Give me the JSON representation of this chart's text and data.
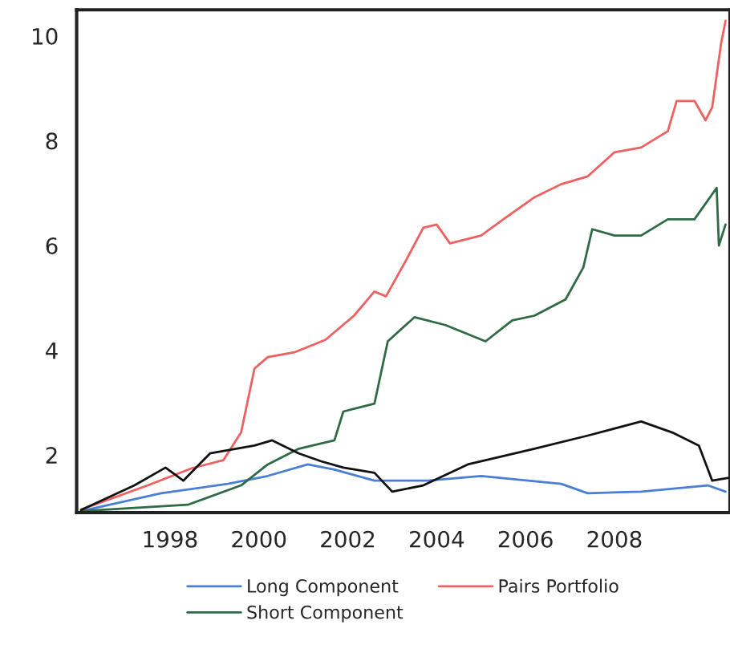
{
  "chart_data": {
    "type": "line",
    "xlim": [
      1995.9,
      2010.6
    ],
    "ylim": [
      0.9,
      10.5
    ],
    "xticks": [
      1998,
      2000,
      2002,
      2004,
      2006,
      2008
    ],
    "yticks": [
      2,
      4,
      6,
      8,
      10
    ],
    "grid": false,
    "legend": "bottom",
    "series": [
      {
        "name": "Long Component",
        "color": "#4a7fd6",
        "x": [
          1996.0,
          1997.8,
          1999.3,
          2000.2,
          2001.1,
          2001.7,
          2002.6,
          2003.8,
          2005.0,
          2006.8,
          2007.4,
          2008.6,
          2010.1,
          2010.5
        ],
        "values": [
          0.93,
          1.27,
          1.45,
          1.6,
          1.82,
          1.72,
          1.51,
          1.51,
          1.6,
          1.45,
          1.27,
          1.3,
          1.42,
          1.3
        ]
      },
      {
        "name": "Short Component",
        "color": "#2e6b45",
        "x": [
          1996.0,
          1998.4,
          1999.6,
          2000.2,
          2000.9,
          2001.7,
          2001.9,
          2002.6,
          2002.9,
          2003.5,
          2004.2,
          2005.1,
          2005.7,
          2006.2,
          2006.9,
          2007.3,
          2007.5,
          2008.0,
          2008.6,
          2009.2,
          2009.8,
          2010.3,
          2010.35,
          2010.5
        ],
        "values": [
          0.93,
          1.05,
          1.42,
          1.82,
          2.12,
          2.28,
          2.83,
          2.98,
          4.17,
          4.63,
          4.48,
          4.17,
          4.57,
          4.66,
          4.97,
          5.58,
          6.31,
          6.19,
          6.19,
          6.5,
          6.5,
          7.1,
          6.0,
          6.4
        ]
      },
      {
        "name": "Pairs Portfolio",
        "color": "#f06060",
        "x": [
          1996.0,
          1997.5,
          1998.5,
          1999.2,
          1999.6,
          1999.9,
          2000.2,
          2000.8,
          2001.5,
          2002.14,
          2002.6,
          2002.86,
          2003.3,
          2003.7,
          2004.0,
          2004.3,
          2005.0,
          2005.5,
          2006.2,
          2006.8,
          2007.4,
          2008.0,
          2008.6,
          2009.2,
          2009.4,
          2009.8,
          2010.05,
          2010.2,
          2010.4,
          2010.5
        ],
        "values": [
          0.96,
          1.42,
          1.75,
          1.9,
          2.43,
          3.65,
          3.87,
          3.96,
          4.2,
          4.66,
          5.12,
          5.03,
          5.7,
          6.34,
          6.4,
          6.04,
          6.19,
          6.5,
          6.92,
          7.17,
          7.32,
          7.78,
          7.87,
          8.18,
          8.76,
          8.76,
          8.39,
          8.64,
          9.86,
          10.29
        ]
      },
      {
        "color": "#111111",
        "x": [
          1996.0,
          1997.2,
          1997.9,
          1998.3,
          1998.9,
          1999.9,
          2000.3,
          2000.9,
          2001.4,
          2001.9,
          2002.6,
          2003.0,
          2003.7,
          2004.7,
          2006.2,
          2007.4,
          2008.6,
          2009.3,
          2009.9,
          2010.2,
          2010.6
        ],
        "values": [
          0.95,
          1.42,
          1.76,
          1.51,
          2.03,
          2.18,
          2.28,
          2.03,
          1.88,
          1.76,
          1.66,
          1.3,
          1.42,
          1.82,
          2.12,
          2.37,
          2.64,
          2.43,
          2.18,
          1.51,
          1.57
        ]
      }
    ]
  }
}
